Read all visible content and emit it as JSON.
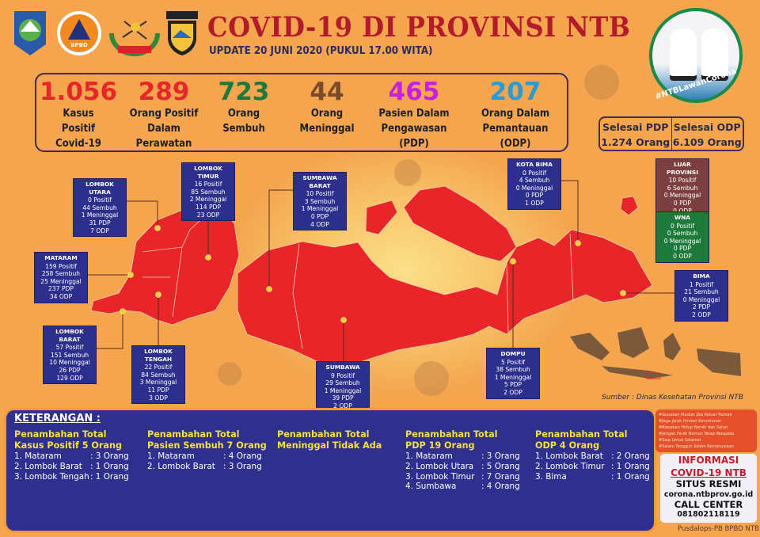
{
  "header": {
    "title": "COVID-19 DI PROVINSI NTB",
    "update": "UPDATE 20 JUNI 2020 (PUKUL 17.00 WITA)",
    "logos": [
      "NTB province crest",
      "BPBD",
      "WIRA BHAKTI",
      "POLDA NUSA TENGGARA BARAT"
    ]
  },
  "stats": [
    {
      "value": "1.056",
      "label": [
        "Kasus",
        "Positif",
        "Covid-19"
      ],
      "color": "#e8262a"
    },
    {
      "value": "289",
      "label": [
        "Orang Positif",
        "Dalam",
        "Perawatan"
      ],
      "color": "#e8262a"
    },
    {
      "value": "723",
      "label": [
        "Orang",
        "Sembuh"
      ],
      "color": "#1d7a3c"
    },
    {
      "value": "44",
      "label": [
        "Orang",
        "Meninggal"
      ],
      "color": "#7a4a2a"
    },
    {
      "value": "465",
      "label": [
        "Pasien Dalam",
        "Pengawasan",
        "(PDP)"
      ],
      "color": "#c81ee6"
    },
    {
      "value": "207",
      "label": [
        "Orang Dalam",
        "Pemantauan",
        "(ODP)"
      ],
      "color": "#2a9bd4"
    }
  ],
  "hashtag": "#NTBLawanCorona",
  "selesai": {
    "pdp_label": "Selesai PDP",
    "pdp_value": "1.274 Orang",
    "odp_label": "Selesai ODP",
    "odp_value": "6.109 Orang"
  },
  "regions": [
    {
      "name": "LOMBOK UTARA",
      "lines": [
        "0 Positif",
        "44 Sembuh",
        "1 Meninggal",
        "31 PDP",
        "7 ODP"
      ],
      "color": "#2d2f8c"
    },
    {
      "name": "LOMBOK TIMUR",
      "lines": [
        "16 Positif",
        "85 Sembuh",
        "2 Meninggal",
        "114 PDP",
        "23 ODP"
      ],
      "color": "#2d2f8c"
    },
    {
      "name": "MATARAM",
      "lines": [
        "159 Positif",
        "258 Sembuh",
        "25 Meninggal",
        "237 PDP",
        "34 ODP"
      ],
      "color": "#2d2f8c"
    },
    {
      "name": "LOMBOK BARAT",
      "lines": [
        "57 Positif",
        "151 Sembuh",
        "10 Meninggal",
        "26 PDP",
        "129 ODP"
      ],
      "color": "#2d2f8c"
    },
    {
      "name": "LOMBOK TENGAH",
      "lines": [
        "22 Positif",
        "84 Sembuh",
        "3 Meninggal",
        "11 PDP",
        "3 ODP"
      ],
      "color": "#2d2f8c"
    },
    {
      "name": "SUMBAWA BARAT",
      "lines": [
        "10 Positif",
        "3 Sembuh",
        "1 Meninggal",
        "0 PDP",
        "4 ODP"
      ],
      "color": "#2d2f8c"
    },
    {
      "name": "SUMBAWA",
      "lines": [
        "9 Positif",
        "29 Sembuh",
        "1 Meninggal",
        "39 PDP",
        "2 ODP"
      ],
      "color": "#2d2f8c"
    },
    {
      "name": "KOTA BIMA",
      "lines": [
        "0 Positif",
        "4 Sembuh",
        "0 Meninggal",
        "0 PDP",
        "1 ODP"
      ],
      "color": "#2d2f8c"
    },
    {
      "name": "DOMPU",
      "lines": [
        "5 Positif",
        "38 Sembuh",
        "1 Meninggal",
        "5 PDP",
        "2 ODP"
      ],
      "color": "#2d2f8c"
    },
    {
      "name": "LUAR PROVINSI",
      "lines": [
        "10 Positif",
        "6 Sembuh",
        "0 Meninggal",
        "0 PDP",
        "0 ODP"
      ],
      "color": "#7b3f3f"
    },
    {
      "name": "WNA",
      "lines": [
        "0 Positif",
        "0 Sembuh",
        "0 Meninggal",
        "0 PDP",
        "0 ODP"
      ],
      "color": "#1e7a3a"
    },
    {
      "name": "BIMA",
      "lines": [
        "1 Positif",
        "21 Sembuh",
        "0 Meninggal",
        "2 PDP",
        "2 ODP"
      ],
      "color": "#2d2f8c"
    }
  ],
  "map_colors": {
    "province": "#e8262a",
    "indonesia": "#7a5a3a",
    "marker": "#f5d23a"
  },
  "sumber": "Sumber : Dinas Kesehatan Provinsi NTB",
  "keterangan": {
    "title": "KETERANGAN :",
    "columns": [
      {
        "heading": [
          "Penambahan Total",
          "Kasus Positif 5 Orang"
        ],
        "items": [
          [
            "1. Mataram",
            ": 3 Orang"
          ],
          [
            "2. Lombok Barat",
            ": 1 Orang"
          ],
          [
            "3. Lombok Tengah",
            ": 1 Orang"
          ]
        ]
      },
      {
        "heading": [
          "Penambahan Total",
          "Pasien Sembuh 7 Orang"
        ],
        "items": [
          [
            "1. Mataram",
            ": 4 Orang"
          ],
          [
            "2. Lombok Barat",
            ": 3 Orang"
          ]
        ]
      },
      {
        "heading": [
          "Penambahan Total",
          "Meninggal Tidak Ada"
        ],
        "items": []
      },
      {
        "heading": [
          "Penambahan Total",
          "PDP 19 Orang"
        ],
        "items": [
          [
            "1. Mataram",
            ": 3 Orang"
          ],
          [
            "2. Lombok Utara",
            ": 5 Orang"
          ],
          [
            "3. Lombok Timur",
            ": 7 Orang"
          ],
          [
            "4. Sumbawa",
            ": 4 Orang"
          ]
        ]
      },
      {
        "heading": [
          "Penambahan Total",
          "ODP 4 Orang"
        ],
        "items": [
          [
            "1. Lombok Barat",
            ": 2 Orang"
          ],
          [
            "2. Lombok Timur",
            ": 1 Orang"
          ],
          [
            "3. Bima",
            ": 1 Orang"
          ]
        ]
      }
    ]
  },
  "tips": [
    "#Gunakan Masker Jika Keluar Rumah",
    "#Jaga Jarak Hindari Kerumunan",
    "#Biasakan Hidup Bersih dan Sehat",
    "#Jangan Panik Namun Tetap Waspada",
    "#Siap Untuk Selamat",
    "#Salam Tangguh Salam Kemanusiaan"
  ],
  "info": {
    "title1": "INFORMASI",
    "title2": "COVID-19 NTB",
    "situs_label": "SITUS RESMI",
    "situs": "corona.ntbprov.go.id",
    "call_label": "CALL CENTER",
    "call": "081802118119"
  },
  "footer": "Pusdalops-PB BPBD NTB"
}
